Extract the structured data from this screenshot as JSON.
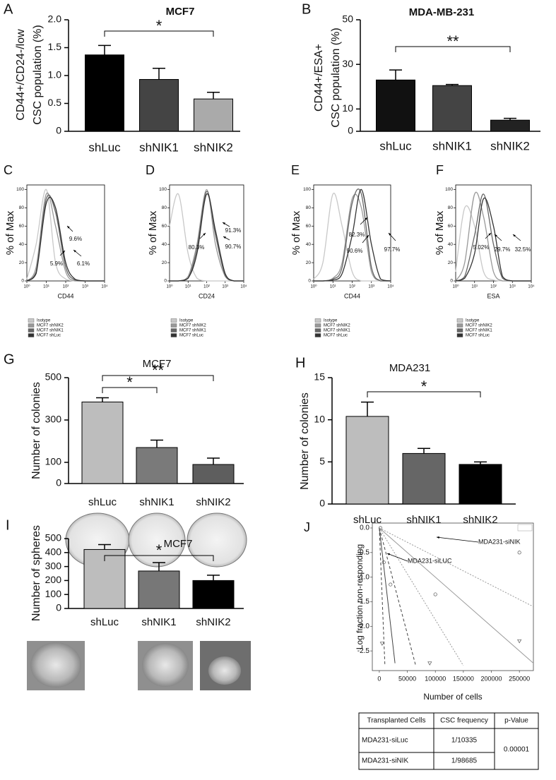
{
  "chart_data": [
    {
      "panel": "A",
      "type": "bar",
      "title": "MCF7",
      "ylabel": [
        "CD44+/CD24-/low",
        "CSC population (%)"
      ],
      "categories": [
        "shLuc",
        "shNIK1",
        "shNIK2"
      ],
      "values": [
        1.37,
        0.93,
        0.58
      ],
      "errors": [
        0.17,
        0.2,
        0.12
      ],
      "colors": [
        "#000000",
        "#444444",
        "#aaaaaa"
      ],
      "ylim": [
        0,
        2
      ],
      "yticks": [
        0,
        0.5,
        {
          "value": 1,
          "label": "1.0"
        },
        1.5,
        {
          "value": 2,
          "label": "2.0"
        }
      ],
      "significance": [
        {
          "between": [
            "shLuc",
            "shNIK2"
          ],
          "label": "*"
        }
      ]
    },
    {
      "panel": "B",
      "type": "bar",
      "title": "MDA-MB-231",
      "ylabel": [
        "CD44+/ESA+",
        "CSC population (%)"
      ],
      "categories": [
        "shLuc",
        "shNIK1",
        "shNIK2"
      ],
      "values": [
        23,
        20.5,
        5
      ],
      "errors": [
        4.5,
        0.5,
        0.8
      ],
      "colors": [
        "#111111",
        "#444444",
        "#222222"
      ],
      "ylim": [
        0,
        50
      ],
      "yticks": [
        0,
        10,
        30,
        50
      ],
      "significance": [
        {
          "between": [
            "shLuc",
            "shNIK2"
          ],
          "label": "**"
        }
      ]
    },
    {
      "panel": "C",
      "type": "flow",
      "xlabel": "CD44",
      "ylabel": "% of Max",
      "xlim": [
        1,
        10000
      ],
      "ylim": [
        0,
        105
      ],
      "xticks": [
        {
          "value": 1,
          "label": "10⁰"
        },
        {
          "value": 10,
          "label": "10¹"
        },
        {
          "value": 100,
          "label": "10²"
        },
        {
          "value": 1000,
          "label": "10³"
        },
        {
          "value": 10000,
          "label": "10⁴"
        }
      ],
      "yticks": [
        0,
        20,
        40,
        60,
        80,
        100
      ],
      "x": [
        1,
        3,
        10,
        30,
        100,
        300,
        1000,
        3000,
        10000
      ],
      "series": [
        {
          "name": "Isotype",
          "color": "#c8c8c8",
          "values": [
            2,
            40,
            100,
            20,
            2,
            0,
            0,
            0,
            0
          ]
        },
        {
          "name": "MCF7 shNIK2",
          "color": "#999999",
          "values": [
            0,
            15,
            95,
            60,
            10,
            0,
            0,
            0,
            0
          ]
        },
        {
          "name": "MCF7 shNIK1",
          "color": "#666666",
          "values": [
            0,
            10,
            90,
            75,
            15,
            1,
            0,
            0,
            0
          ]
        },
        {
          "name": "MCF7 shLuc",
          "color": "#333333",
          "values": [
            0,
            8,
            85,
            80,
            20,
            2,
            0,
            0,
            0
          ]
        }
      ],
      "annotations": [
        "9.6%",
        "5.9%",
        "6.1%"
      ]
    },
    {
      "panel": "D",
      "type": "flow",
      "xlabel": "CD24",
      "ylabel": "% of Max",
      "xlim": [
        1,
        10000
      ],
      "ylim": [
        0,
        105
      ],
      "xticks": [
        {
          "value": 1,
          "label": "10⁰"
        },
        {
          "value": 10,
          "label": "10¹"
        },
        {
          "value": 100,
          "label": "10²"
        },
        {
          "value": 1000,
          "label": "10³"
        },
        {
          "value": 10000,
          "label": "10⁴"
        }
      ],
      "yticks": [
        0,
        20,
        40,
        60,
        80,
        100
      ],
      "x": [
        1,
        3,
        10,
        30,
        100,
        300,
        1000,
        3000,
        10000
      ],
      "series": [
        {
          "name": "Isotype",
          "color": "#c8c8c8",
          "values": [
            60,
            95,
            30,
            3,
            0,
            0,
            0,
            0,
            0
          ]
        },
        {
          "name": "MCF7 shNIK2",
          "color": "#999999",
          "values": [
            0,
            0,
            5,
            40,
            100,
            40,
            5,
            0,
            0
          ]
        },
        {
          "name": "MCF7 shNIK1",
          "color": "#666666",
          "values": [
            0,
            0,
            3,
            35,
            98,
            50,
            6,
            0,
            0
          ]
        },
        {
          "name": "MCF7 shLuc",
          "color": "#333333",
          "values": [
            0,
            0,
            3,
            30,
            95,
            55,
            8,
            0,
            0
          ]
        }
      ],
      "annotations": [
        "80.3%",
        "91.3%",
        "90.7%"
      ]
    },
    {
      "panel": "E",
      "type": "flow",
      "xlabel": "CD44",
      "ylabel": "% of Max",
      "xlim": [
        1,
        10000
      ],
      "ylim": [
        0,
        105
      ],
      "xticks": [
        {
          "value": 1,
          "label": "10⁰"
        },
        {
          "value": 10,
          "label": "10¹"
        },
        {
          "value": 100,
          "label": "10²"
        },
        {
          "value": 1000,
          "label": "10³"
        },
        {
          "value": 10000,
          "label": "10⁴"
        }
      ],
      "yticks": [
        0,
        20,
        40,
        60,
        80,
        100
      ],
      "x": [
        1,
        3,
        10,
        30,
        100,
        300,
        1000,
        3000,
        10000
      ],
      "series": [
        {
          "name": "Isotype",
          "color": "#c8c8c8",
          "values": [
            2,
            20,
            95,
            60,
            10,
            0,
            0,
            0,
            0
          ]
        },
        {
          "name": "MCF7 shNIK2",
          "color": "#999999",
          "values": [
            0,
            0,
            3,
            20,
            90,
            80,
            10,
            0,
            0
          ]
        },
        {
          "name": "MCF7 shNIK1",
          "color": "#666666",
          "values": [
            0,
            0,
            2,
            15,
            85,
            95,
            15,
            0,
            0
          ]
        },
        {
          "name": "MCF7 shLuc",
          "color": "#333333",
          "values": [
            0,
            0,
            1,
            8,
            50,
            100,
            40,
            2,
            0
          ]
        }
      ],
      "annotations": [
        "82.3%",
        "90.6%",
        "97.7%"
      ]
    },
    {
      "panel": "F",
      "type": "flow",
      "xlabel": "ESA",
      "ylabel": "% of Max",
      "xlim": [
        1,
        10000
      ],
      "ylim": [
        0,
        105
      ],
      "xticks": [
        {
          "value": 1,
          "label": "10⁰"
        },
        {
          "value": 10,
          "label": "10¹"
        },
        {
          "value": 100,
          "label": "10²"
        },
        {
          "value": 1000,
          "label": "10³"
        },
        {
          "value": 10000,
          "label": "10⁴"
        }
      ],
      "yticks": [
        0,
        20,
        40,
        60,
        80,
        100
      ],
      "x": [
        1,
        3,
        10,
        30,
        100,
        300,
        1000,
        3000,
        10000
      ],
      "series": [
        {
          "name": "Isotype",
          "color": "#c8c8c8",
          "values": [
            10,
            80,
            60,
            10,
            1,
            0,
            0,
            0,
            0
          ]
        },
        {
          "name": "MCF7 shNIK2",
          "color": "#999999",
          "values": [
            0,
            20,
            95,
            70,
            10,
            0,
            0,
            0,
            0
          ]
        },
        {
          "name": "MCF7 shNIK1",
          "color": "#666666",
          "values": [
            0,
            5,
            50,
            95,
            40,
            3,
            0,
            0,
            0
          ]
        },
        {
          "name": "MCF7 shLuc",
          "color": "#333333",
          "values": [
            0,
            3,
            30,
            90,
            60,
            5,
            0,
            0,
            0
          ]
        }
      ],
      "annotations": [
        "5.02%",
        "29.7%",
        "32.5%"
      ]
    },
    {
      "panel": "G",
      "type": "bar",
      "title": "MCF7",
      "ylabel": [
        "Number of colonies"
      ],
      "categories": [
        "shLuc",
        "shNIK1",
        "shNIK2"
      ],
      "values": [
        385,
        170,
        90
      ],
      "errors": [
        20,
        35,
        30
      ],
      "colors": [
        "#bdbdbd",
        "#7a7a7a",
        "#5e5e5e"
      ],
      "ylim": [
        0,
        500
      ],
      "yticks": [
        0,
        100,
        300,
        500
      ],
      "significance": [
        {
          "between": [
            "shLuc",
            "shNIK1"
          ],
          "label": "*"
        },
        {
          "between": [
            "shLuc",
            "shNIK2"
          ],
          "label": "**"
        }
      ]
    },
    {
      "panel": "H",
      "type": "bar",
      "title": "MDA231",
      "ylabel": [
        "Number of colonies"
      ],
      "categories": [
        "shLuc",
        "shNIK1",
        "shNIK2"
      ],
      "values": [
        10.4,
        6,
        4.7
      ],
      "errors": [
        1.7,
        0.6,
        0.3
      ],
      "colors": [
        "#bdbdbd",
        "#666666",
        "#000000"
      ],
      "ylim": [
        0,
        15
      ],
      "yticks": [
        0,
        5,
        10,
        15
      ],
      "significance": [
        {
          "between": [
            "shLuc",
            "shNIK2"
          ],
          "label": "*"
        }
      ]
    },
    {
      "panel": "I",
      "type": "bar",
      "title": "MCF7",
      "ylabel": [
        "Number of spheres"
      ],
      "categories": [
        "shLuc",
        "shNIK1",
        "shNIK2"
      ],
      "values": [
        422,
        268,
        200
      ],
      "errors": [
        35,
        60,
        38
      ],
      "colors": [
        "#bdbdbd",
        "#777777",
        "#000000"
      ],
      "ylim": [
        0,
        500
      ],
      "yticks": [
        0,
        100,
        200,
        300,
        400,
        500
      ],
      "significance": [
        {
          "between": [
            "shLuc",
            "shNIK2"
          ],
          "label": "*"
        }
      ]
    },
    {
      "panel": "J",
      "type": "line",
      "ylabel": "Log fraction non-responding",
      "xlabel": "Number of cells",
      "xlim": [
        -12500,
        275000
      ],
      "ylim": [
        -2.9,
        0.1
      ],
      "xticks": [
        0,
        50000,
        100000,
        150000,
        200000,
        250000
      ],
      "yticks": [
        {
          "value": 0,
          "label": "0.0"
        },
        -0.5,
        {
          "value": -1,
          "label": "-1.0"
        },
        -1.5,
        {
          "value": -2,
          "label": "-2.0"
        },
        -2.5
      ],
      "series": [
        {
          "x": [
            0,
            28000
          ],
          "values": [
            0,
            -2.75
          ],
          "color": "#444444",
          "dash": "solid"
        },
        {
          "x": [
            0,
            10000
          ],
          "values": [
            0,
            -2.8
          ],
          "color": "#444444",
          "dash": "dashed"
        },
        {
          "x": [
            0,
            65000
          ],
          "values": [
            0,
            -2.8
          ],
          "color": "#444444",
          "dash": "dashed"
        },
        {
          "x": [
            0,
            275000
          ],
          "values": [
            0,
            -2.75
          ],
          "color": "#999999",
          "dash": "solid"
        },
        {
          "x": [
            0,
            150000
          ],
          "values": [
            0,
            -2.8
          ],
          "color": "#999999",
          "dash": "dotted"
        },
        {
          "x": [
            0,
            275000
          ],
          "values": [
            0,
            -1.6
          ],
          "color": "#999999",
          "dash": "dotted"
        }
      ],
      "points": [
        {
          "marker": "circle",
          "x": [
            2000,
            8000,
            20000,
            100000,
            250000
          ],
          "values": [
            0,
            -0.7,
            -1.15,
            -1.35,
            -0.5
          ]
        },
        {
          "marker": "triangle",
          "x": [
            5000,
            90000,
            250000
          ],
          "values": [
            -2.35,
            -2.75,
            -2.3
          ]
        }
      ],
      "annotations": [
        "MDA231-siNIK",
        "MDA231-siLUC"
      ]
    }
  ],
  "table": {
    "columns": [
      "Transplanted Cells",
      "CSC frequency",
      "p-Value"
    ],
    "rows": [
      [
        "MDA231-siLuc",
        "1/10335"
      ],
      [
        "MDA231-siNIK",
        "1/98685"
      ]
    ],
    "p_value": "0.00001"
  }
}
